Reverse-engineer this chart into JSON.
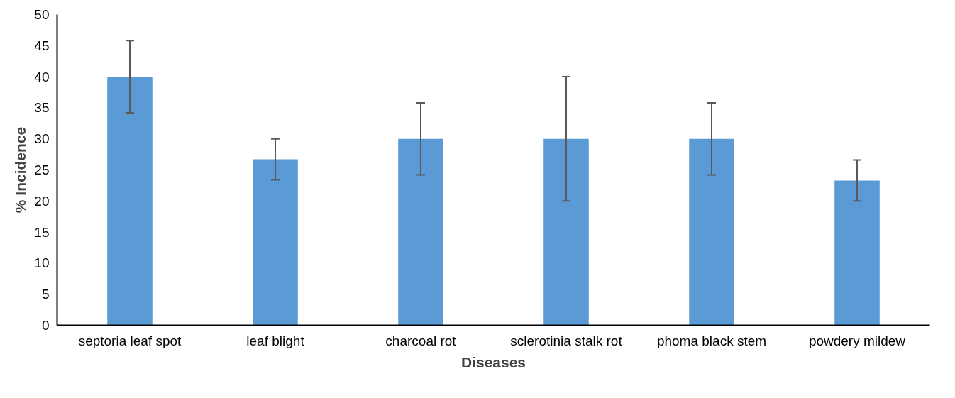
{
  "chart_data": {
    "type": "bar",
    "xlabel": "Diseases",
    "ylabel": "% Incidence",
    "categories": [
      "septoria leaf spot",
      "leaf blight",
      "charcoal rot",
      "sclerotinia stalk rot",
      "phoma black stem",
      "powdery mildew"
    ],
    "values": [
      40,
      26.7,
      30,
      30,
      30,
      23.3
    ],
    "errors": [
      5.8,
      3.3,
      5.8,
      10,
      5.8,
      3.3
    ],
    "color": "#5b9bd5",
    "ylim": [
      0,
      50
    ],
    "yticks": [
      0,
      5,
      10,
      15,
      20,
      25,
      30,
      35,
      40,
      45,
      50
    ],
    "grid": false
  }
}
